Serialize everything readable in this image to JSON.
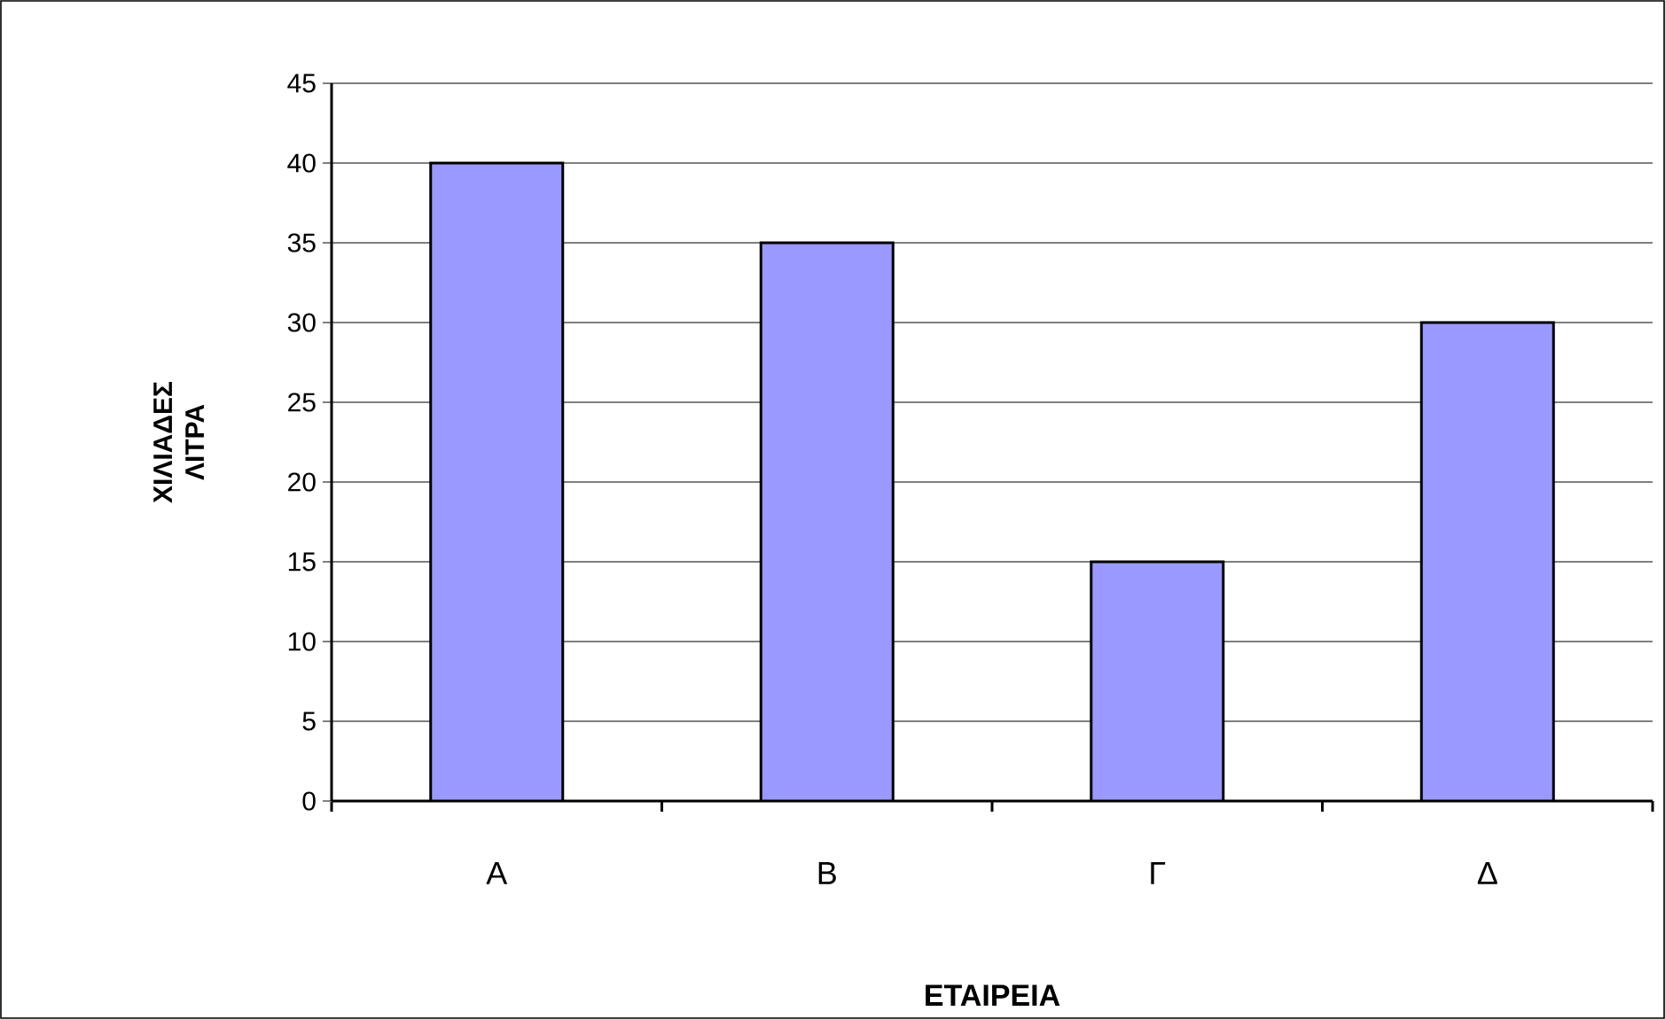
{
  "chart_data": {
    "type": "bar",
    "xlabel": "ΕΤΑΙΡΕΙΑ",
    "ylabel": "ΧΙΛΙΑΔΕΣ ΛΙΤΡΑ",
    "categories": [
      "Α",
      "Β",
      "Γ",
      "Δ"
    ],
    "values": [
      40,
      35,
      15,
      30
    ],
    "color": "#9999ff",
    "ylim": [
      0,
      45
    ],
    "yticks": [
      0,
      5,
      10,
      15,
      20,
      25,
      30,
      35,
      40,
      45
    ],
    "grid": "y"
  }
}
